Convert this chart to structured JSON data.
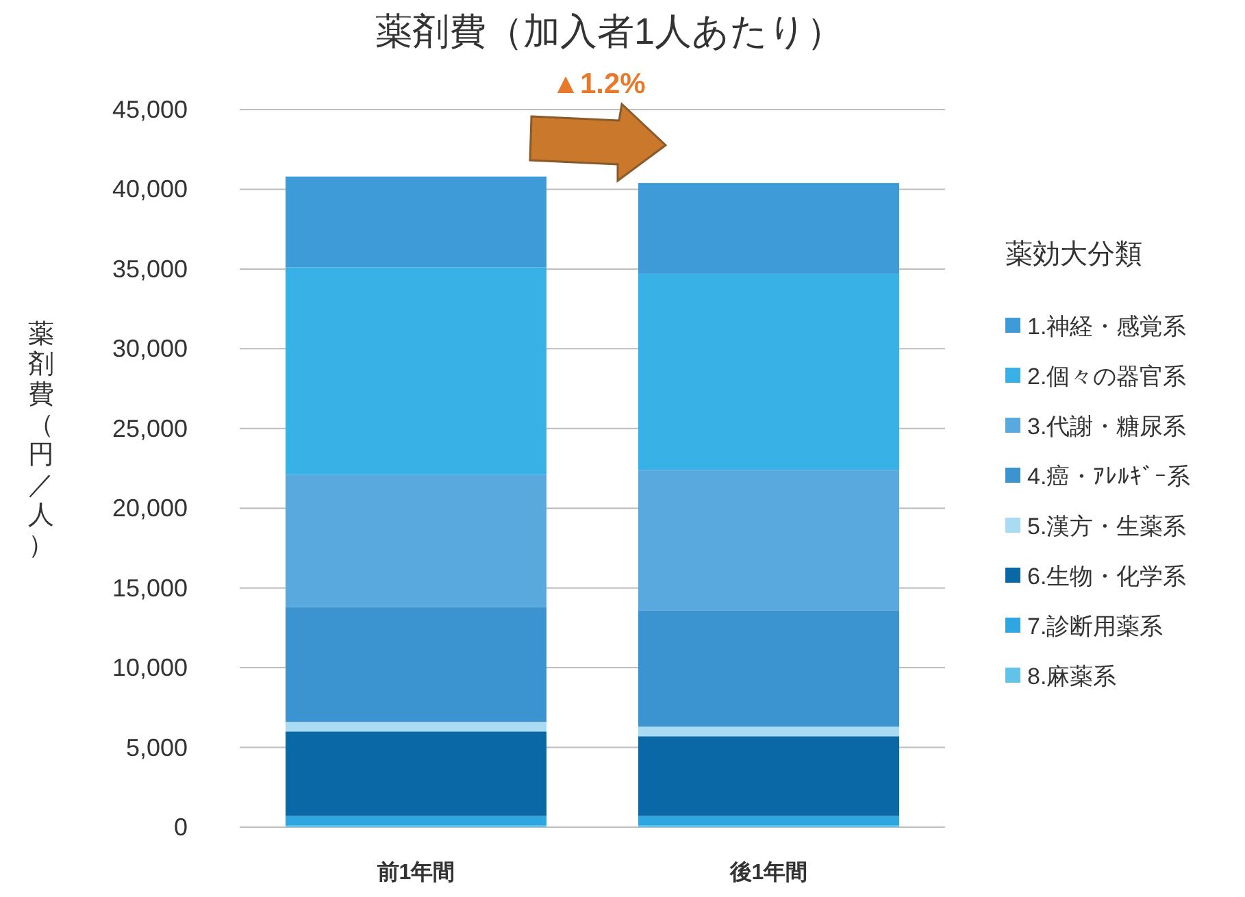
{
  "chart_data": {
    "type": "bar",
    "stacked": true,
    "title": "薬剤費（加入者1人あたり）",
    "ylabel": "薬剤費（円／人）",
    "legend_title": "薬効大分類",
    "legend": "right",
    "grid": "y",
    "categories": [
      "前1年間",
      "後1年間"
    ],
    "ylim": [
      0,
      45000
    ],
    "yticks": [
      0,
      {
        "value": 5000,
        "label": "5,000"
      },
      {
        "value": 10000,
        "label": "10,000"
      },
      {
        "value": 15000,
        "label": "15,000"
      },
      {
        "value": 20000,
        "label": "20,000"
      },
      {
        "value": 25000,
        "label": "25,000"
      },
      {
        "value": 30000,
        "label": "30,000"
      },
      {
        "value": 35000,
        "label": "35,000"
      },
      {
        "value": 40000,
        "label": "40,000"
      },
      {
        "value": 45000,
        "label": "45,000"
      }
    ],
    "annotations": [
      "▲1.2%"
    ],
    "series": [
      {
        "name": "8.麻薬系",
        "color": "#62c3ea",
        "values": [
          100,
          100
        ]
      },
      {
        "name": "7.診断用薬系",
        "color": "#2fa6e0",
        "values": [
          600,
          600
        ]
      },
      {
        "name": "6.生物・化学系",
        "color": "#0b68a6",
        "values": [
          5300,
          5000
        ]
      },
      {
        "name": "5.漢方・生薬系",
        "color": "#a9dcf3",
        "values": [
          600,
          600
        ]
      },
      {
        "name": "4.癌・ｱﾚﾙｷﾞｰ系",
        "color": "#3b93cf",
        "values": [
          7200,
          7300
        ]
      },
      {
        "name": "3.代謝・糖尿系",
        "color": "#5aa9de",
        "values": [
          8300,
          8800
        ]
      },
      {
        "name": "2.個々の器官系",
        "color": "#38b2e6",
        "values": [
          13000,
          12300
        ]
      },
      {
        "name": "1.神経・感覚系",
        "color": "#3e9bd8",
        "values": [
          5700,
          5700
        ]
      }
    ]
  }
}
